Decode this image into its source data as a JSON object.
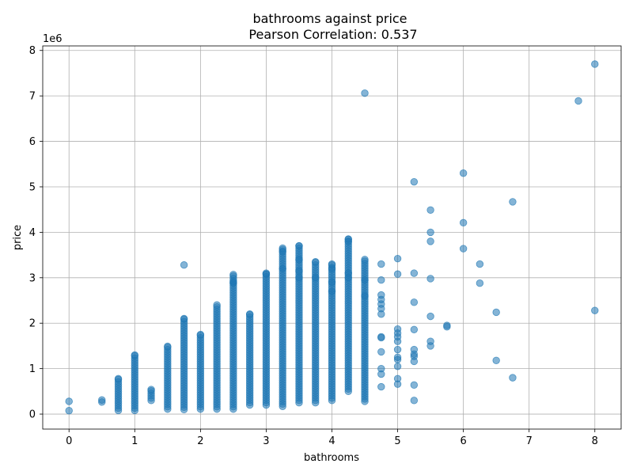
{
  "chart_data": {
    "type": "scatter",
    "title": "bathrooms against price",
    "subtitle": "Pearson Correlation: 0.537",
    "xlabel": "bathrooms",
    "ylabel": "price",
    "y_offset_label": "1e6",
    "xlim": [
      -0.4,
      8.4
    ],
    "ylim": [
      -330000,
      8100000
    ],
    "x_ticks": [
      0,
      1,
      2,
      3,
      4,
      5,
      6,
      7,
      8
    ],
    "x_tick_labels": [
      "0",
      "1",
      "2",
      "3",
      "4",
      "5",
      "6",
      "7",
      "8"
    ],
    "y_ticks": [
      0,
      1000000,
      2000000,
      3000000,
      4000000,
      5000000,
      6000000,
      7000000,
      8000000
    ],
    "y_tick_labels": [
      "0",
      "1",
      "2",
      "3",
      "4",
      "5",
      "6",
      "7",
      "8"
    ],
    "grid": true,
    "marker_color": "#1f77b4",
    "marker_alpha": 0.55,
    "bands": [
      {
        "x": 0.75,
        "min": 80000,
        "max": 780000
      },
      {
        "x": 1.0,
        "min": 80000,
        "max": 1300000
      },
      {
        "x": 1.25,
        "min": 300000,
        "max": 540000
      },
      {
        "x": 1.5,
        "min": 110000,
        "max": 1490000
      },
      {
        "x": 1.75,
        "min": 100000,
        "max": 2100000
      },
      {
        "x": 2.0,
        "min": 110000,
        "max": 1750000
      },
      {
        "x": 2.25,
        "min": 110000,
        "max": 2400000
      },
      {
        "x": 2.5,
        "min": 110000,
        "max": 3070000
      },
      {
        "x": 2.75,
        "min": 200000,
        "max": 2200000
      },
      {
        "x": 3.0,
        "min": 200000,
        "max": 3100000
      },
      {
        "x": 3.25,
        "min": 170000,
        "max": 3650000
      },
      {
        "x": 3.5,
        "min": 250000,
        "max": 3700000
      },
      {
        "x": 3.75,
        "min": 250000,
        "max": 3350000
      },
      {
        "x": 4.0,
        "min": 300000,
        "max": 3300000
      },
      {
        "x": 4.25,
        "min": 500000,
        "max": 3850000
      },
      {
        "x": 4.5,
        "min": 280000,
        "max": 3400000
      }
    ],
    "points": [
      {
        "x": 0,
        "y": 280000
      },
      {
        "x": 0,
        "y": 75000
      },
      {
        "x": 0.5,
        "y": 310000
      },
      {
        "x": 0.5,
        "y": 265000
      },
      {
        "x": 1.75,
        "y": 3280000
      },
      {
        "x": 2.5,
        "y": 2880000
      },
      {
        "x": 2.5,
        "y": 2910000
      },
      {
        "x": 3.0,
        "y": 3080000
      },
      {
        "x": 3.25,
        "y": 3200000
      },
      {
        "x": 3.25,
        "y": 3580000
      },
      {
        "x": 3.5,
        "y": 3400000
      },
      {
        "x": 3.5,
        "y": 3150000
      },
      {
        "x": 3.5,
        "y": 3000000
      },
      {
        "x": 3.75,
        "y": 3000000
      },
      {
        "x": 4.0,
        "y": 3200000
      },
      {
        "x": 4.0,
        "y": 2900000
      },
      {
        "x": 4.0,
        "y": 2700000
      },
      {
        "x": 4.25,
        "y": 3800000
      },
      {
        "x": 4.25,
        "y": 3100000
      },
      {
        "x": 4.25,
        "y": 3000000
      },
      {
        "x": 4.5,
        "y": 7060000
      },
      {
        "x": 4.5,
        "y": 2950000
      },
      {
        "x": 4.5,
        "y": 2600000
      },
      {
        "x": 4.75,
        "y": 3300000
      },
      {
        "x": 4.75,
        "y": 2950000
      },
      {
        "x": 4.75,
        "y": 2620000
      },
      {
        "x": 4.75,
        "y": 2520000
      },
      {
        "x": 4.75,
        "y": 2420000
      },
      {
        "x": 4.75,
        "y": 2320000
      },
      {
        "x": 4.75,
        "y": 2200000
      },
      {
        "x": 4.75,
        "y": 1700000
      },
      {
        "x": 4.75,
        "y": 1680000
      },
      {
        "x": 4.75,
        "y": 1370000
      },
      {
        "x": 4.75,
        "y": 1000000
      },
      {
        "x": 4.75,
        "y": 880000
      },
      {
        "x": 4.75,
        "y": 600000
      },
      {
        "x": 5.0,
        "y": 3420000
      },
      {
        "x": 5.0,
        "y": 3080000
      },
      {
        "x": 5.0,
        "y": 1870000
      },
      {
        "x": 5.0,
        "y": 1780000
      },
      {
        "x": 5.0,
        "y": 1700000
      },
      {
        "x": 5.0,
        "y": 1600000
      },
      {
        "x": 5.0,
        "y": 1420000
      },
      {
        "x": 5.0,
        "y": 1250000
      },
      {
        "x": 5.0,
        "y": 1200000
      },
      {
        "x": 5.0,
        "y": 1050000
      },
      {
        "x": 5.0,
        "y": 780000
      },
      {
        "x": 5.0,
        "y": 660000
      },
      {
        "x": 5.25,
        "y": 5110000
      },
      {
        "x": 5.25,
        "y": 3100000
      },
      {
        "x": 5.25,
        "y": 2460000
      },
      {
        "x": 5.25,
        "y": 1860000
      },
      {
        "x": 5.25,
        "y": 1420000
      },
      {
        "x": 5.25,
        "y": 1320000
      },
      {
        "x": 5.25,
        "y": 1270000
      },
      {
        "x": 5.25,
        "y": 1160000
      },
      {
        "x": 5.25,
        "y": 640000
      },
      {
        "x": 5.25,
        "y": 300000
      },
      {
        "x": 5.5,
        "y": 4490000
      },
      {
        "x": 5.5,
        "y": 4000000
      },
      {
        "x": 5.5,
        "y": 3800000
      },
      {
        "x": 5.5,
        "y": 2980000
      },
      {
        "x": 5.5,
        "y": 2150000
      },
      {
        "x": 5.5,
        "y": 1600000
      },
      {
        "x": 5.5,
        "y": 1500000
      },
      {
        "x": 5.75,
        "y": 1950000
      },
      {
        "x": 5.75,
        "y": 1920000
      },
      {
        "x": 6.0,
        "y": 5300000
      },
      {
        "x": 6.0,
        "y": 4210000
      },
      {
        "x": 6.0,
        "y": 3640000
      },
      {
        "x": 6.25,
        "y": 3300000
      },
      {
        "x": 6.25,
        "y": 2880000
      },
      {
        "x": 6.5,
        "y": 2240000
      },
      {
        "x": 6.5,
        "y": 1180000
      },
      {
        "x": 6.75,
        "y": 4670000
      },
      {
        "x": 6.75,
        "y": 800000
      },
      {
        "x": 7.75,
        "y": 6890000
      },
      {
        "x": 8.0,
        "y": 7700000
      },
      {
        "x": 8.0,
        "y": 2280000
      }
    ]
  }
}
